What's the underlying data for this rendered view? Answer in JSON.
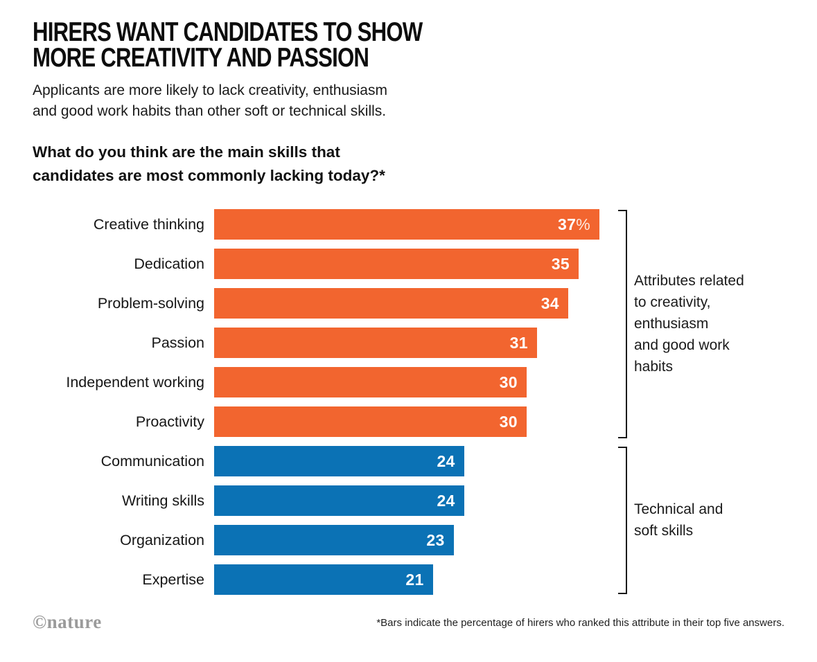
{
  "header": {
    "title": "HIRERS WANT CANDIDATES TO SHOW MORE CREATIVITY AND PASSION",
    "title_lines": [
      "HIRERS WANT CANDIDATES TO SHOW",
      "MORE CREATIVITY AND PASSION"
    ],
    "subtitle": "Applicants are more likely to lack creativity, enthusiasm and good work habits than other soft or technical skills.",
    "subtitle_lines": [
      "Applicants are more likely to lack creativity, enthusiasm",
      "and good work habits than other soft or technical skills."
    ]
  },
  "question": {
    "text": "What do you think are the main skills that candidates are most commonly lacking today?*",
    "lines": [
      "What do you think are the main skills that",
      "candidates are most commonly lacking today?*"
    ]
  },
  "chart_data": {
    "type": "bar",
    "orientation": "horizontal",
    "categories": [
      "Creative thinking",
      "Dedication",
      "Problem-solving",
      "Passion",
      "Independent working",
      "Proactivity",
      "Communication",
      "Writing skills",
      "Organization",
      "Expertise"
    ],
    "values": [
      37,
      35,
      34,
      31,
      30,
      30,
      24,
      24,
      23,
      21
    ],
    "value_suffix": "%",
    "suffix_on_first_only": true,
    "xlim": [
      0,
      37
    ],
    "grid": false,
    "legend": "none",
    "groups": [
      {
        "label": "Attributes related to creativity, enthusiasm and good work habits",
        "label_lines": [
          "Attributes related",
          "to creativity,",
          "enthusiasm",
          "and good work",
          "habits"
        ],
        "start": 0,
        "end": 5,
        "color": "#F2652F"
      },
      {
        "label": "Technical and soft skills",
        "label_lines": [
          "Technical and",
          "soft skills"
        ],
        "start": 6,
        "end": 9,
        "color": "#0B72B5"
      }
    ]
  },
  "footer": {
    "logo": "©nature",
    "footnote": "*Bars indicate the percentage of hirers who ranked this attribute in their top five answers."
  }
}
